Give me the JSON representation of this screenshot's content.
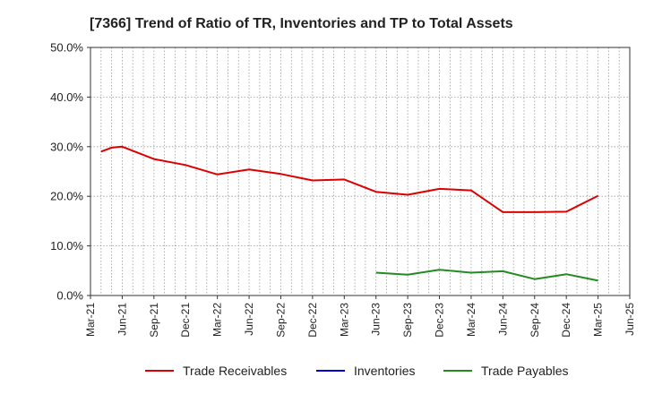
{
  "chart_data": {
    "type": "line",
    "title": "[7366]  Trend of Ratio of TR, Inventories and TP to Total Assets",
    "xlabel": "",
    "ylabel": "",
    "x_ticks": [
      "Mar-21",
      "Jun-21",
      "Sep-21",
      "Dec-21",
      "Mar-22",
      "Jun-22",
      "Sep-22",
      "Dec-22",
      "Mar-23",
      "Jun-23",
      "Sep-23",
      "Dec-23",
      "Mar-24",
      "Jun-24",
      "Sep-24",
      "Dec-24",
      "Mar-25",
      "Jun-25"
    ],
    "y_ticks": [
      "0.0%",
      "10.0%",
      "20.0%",
      "30.0%",
      "40.0%",
      "50.0%"
    ],
    "ylim": [
      0,
      50
    ],
    "grid": true,
    "legend_position": "bottom",
    "series": [
      {
        "name": "Trade Receivables",
        "color": "#dd0000",
        "points": [
          {
            "x": "Apr-21",
            "y": 29.0
          },
          {
            "x": "May-21",
            "y": 29.8
          },
          {
            "x": "Jun-21",
            "y": 30.0
          },
          {
            "x": "Sep-21",
            "y": 27.5
          },
          {
            "x": "Dec-21",
            "y": 26.3
          },
          {
            "x": "Mar-22",
            "y": 24.4
          },
          {
            "x": "Jun-22",
            "y": 25.4
          },
          {
            "x": "Sep-22",
            "y": 24.5
          },
          {
            "x": "Dec-22",
            "y": 23.2
          },
          {
            "x": "Mar-23",
            "y": 23.4
          },
          {
            "x": "Jun-23",
            "y": 20.9
          },
          {
            "x": "Sep-23",
            "y": 20.3
          },
          {
            "x": "Dec-23",
            "y": 21.5
          },
          {
            "x": "Mar-24",
            "y": 21.2
          },
          {
            "x": "Jun-24",
            "y": 16.8
          },
          {
            "x": "Sep-24",
            "y": 16.8
          },
          {
            "x": "Dec-24",
            "y": 16.9
          },
          {
            "x": "Mar-25",
            "y": 20.1
          }
        ]
      },
      {
        "name": "Inventories",
        "color": "#0000cc",
        "points": []
      },
      {
        "name": "Trade Payables",
        "color": "#228b22",
        "points": [
          {
            "x": "Jun-23",
            "y": 4.6
          },
          {
            "x": "Sep-23",
            "y": 4.2
          },
          {
            "x": "Dec-23",
            "y": 5.2
          },
          {
            "x": "Mar-24",
            "y": 4.6
          },
          {
            "x": "Jun-24",
            "y": 4.9
          },
          {
            "x": "Sep-24",
            "y": 3.3
          },
          {
            "x": "Dec-24",
            "y": 4.3
          },
          {
            "x": "Mar-25",
            "y": 3.0
          }
        ]
      }
    ]
  }
}
